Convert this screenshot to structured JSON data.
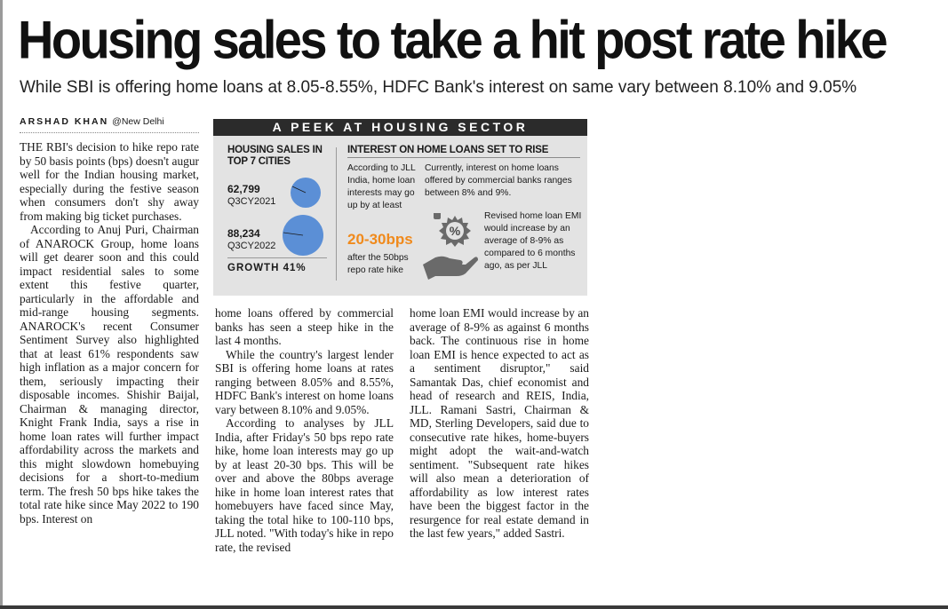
{
  "headline": "Housing sales to take a hit post rate hike",
  "subheadline": "While SBI is offering home loans at 8.05-8.55%, HDFC Bank's interest on same vary between 8.10% and 9.05%",
  "byline": {
    "author": "ARSHAD KHAN",
    "location": "@New Delhi"
  },
  "infographic": {
    "title": "A PEEK AT HOUSING SECTOR",
    "sales": {
      "heading": "HOUSING SALES IN TOP 7 CITIES",
      "items": [
        {
          "value": "62,799",
          "period": "Q3CY2021"
        },
        {
          "value": "88,234",
          "period": "Q3CY2022"
        }
      ],
      "growth": "GROWTH 41%"
    },
    "interest": {
      "heading": "INTEREST ON HOME LOANS SET TO RISE",
      "jll_text": "According to JLL India, home loan interests may go up by at least",
      "rate": "20-30bps",
      "rate_note": "after the 50bps repo rate hike",
      "current_text": "Currently, interest on home loans offered by commercial banks ranges between 8% and 9%.",
      "emi_text": "Revised home loan EMI would increase by an average of 8-9% as compared to 6 months ago, as per JLL",
      "percent_icon": "%"
    }
  },
  "body": {
    "col1": [
      "THE RBI's decision to hike repo rate by 50 basis points (bps) doesn't augur well for the Indian housing market, especially during the festive season when consumers don't shy away from making big ticket purchases.",
      "According to Anuj Puri, Chairman of ANAROCK Group, home loans will get dearer soon and this could impact residential sales to some extent this festive quarter, particularly in the affordable and mid-range housing segments. ANAROCK's recent Consumer Sentiment Survey also highlighted that at least 61% respondents saw high inflation as a major concern for them, seriously impacting their disposable incomes. Shishir Baijal, Chairman & managing director, Knight Frank India, says a rise in home loan rates will further impact affordability across the markets and this might slowdown homebuying decisions for a short-to-medium term. The fresh 50 bps hike takes the total rate hike since May 2022 to 190 bps. Interest on"
    ],
    "col2": [
      "home loans offered by commercial banks has seen a steep hike in the last 4 months.",
      "While the country's largest lender SBI is offering home loans at rates ranging between 8.05% and 8.55%, HDFC Bank's interest on home loans vary between 8.10% and 9.05%.",
      "According to analyses by JLL India, after Friday's 50 bps repo rate hike, home loan interests may go up by at least 20-30 bps. This will be over and above the 80bps average hike in home loan interest rates that homebuyers have faced since May, taking the total hike to 100-110 bps, JLL noted. \"With today's hike in repo rate, the revised"
    ],
    "col3": [
      "home loan EMI would increase by an average of 8-9% as against 6 months back. The continuous rise in home loan EMI is hence expected to act as a sentiment disruptor,\" said Samantak Das, chief economist and head of research and REIS, India, JLL. Ramani Sastri, Chairman & MD, Sterling Developers, said due to consecutive rate hikes, home-buyers might adopt the wait-and-watch sentiment. \"Subsequent rate hikes will also mean a deterioration of affordability as low interest rates have been the biggest factor in the resurgence for real estate demand in the last few years,\" added Sastri."
    ]
  },
  "colors": {
    "accent_orange": "#f08a1c",
    "circle_blue": "#5b8fd6",
    "panel_grey": "#e3e3e3",
    "title_bar": "#2b2b2b"
  }
}
